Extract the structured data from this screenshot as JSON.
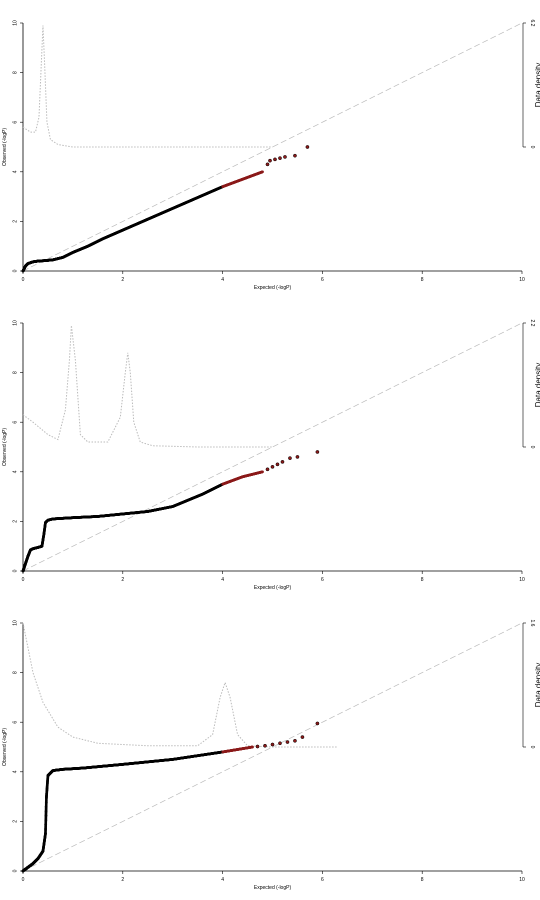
{
  "chart_data": [
    {
      "type": "scatter",
      "xlabel": "Expected (-logP)",
      "ylabel": "Observed (-logP)",
      "y2label": "Data density",
      "xlim": [
        0,
        10
      ],
      "ylim": [
        0,
        10
      ],
      "xticks": [
        "0",
        "2",
        "4",
        "6",
        "8",
        "10"
      ],
      "yticks": [
        "0",
        "2",
        "4",
        "6",
        "8",
        "10"
      ],
      "y2ticks": [
        "0",
        "6.2"
      ],
      "grid": false,
      "legend": "none",
      "reference_line": "y = x",
      "colors": {
        "bulk_points": "#000000",
        "tail_points": "#8b1a1a",
        "reference": "#bbbbbb",
        "density": "#bbbbbb"
      },
      "series": [
        {
          "role": "observed_vs_expected",
          "x": [
            0,
            0.05,
            0.1,
            0.2,
            0.3,
            0.45,
            0.6,
            0.8,
            1.0,
            1.3,
            1.6,
            2.0,
            2.4,
            2.8,
            3.2,
            3.6,
            4.0,
            4.4,
            4.8
          ],
          "y": [
            0,
            0.2,
            0.3,
            0.37,
            0.4,
            0.42,
            0.45,
            0.55,
            0.75,
            1.0,
            1.3,
            1.65,
            2.0,
            2.35,
            2.7,
            3.05,
            3.4,
            3.7,
            4.0
          ]
        },
        {
          "role": "tail_points",
          "x": [
            4.9,
            4.95,
            5.05,
            5.15,
            5.25,
            5.45,
            5.7
          ],
          "y": [
            4.3,
            4.45,
            4.5,
            4.55,
            4.6,
            4.65,
            5.0
          ]
        },
        {
          "role": "density_curve",
          "x": [
            0,
            0.15,
            0.25,
            0.32,
            0.37,
            0.4,
            0.43,
            0.48,
            0.55,
            0.7,
            1.0,
            2.0,
            3.0,
            4.0,
            5.0
          ],
          "y": [
            5.8,
            5.6,
            5.6,
            6.2,
            8.5,
            9.9,
            8.5,
            6.0,
            5.3,
            5.1,
            5.0,
            5.0,
            5.0,
            5.0,
            5.0
          ]
        }
      ]
    },
    {
      "type": "scatter",
      "xlabel": "Expected (-logP)",
      "ylabel": "Observed (-logP)",
      "y2label": "Data density",
      "xlim": [
        0,
        10
      ],
      "ylim": [
        0,
        10
      ],
      "xticks": [
        "0",
        "2",
        "4",
        "6",
        "8",
        "10"
      ],
      "yticks": [
        "0",
        "2",
        "4",
        "6",
        "8",
        "10"
      ],
      "y2ticks": [
        "0",
        "2.2"
      ],
      "grid": false,
      "legend": "none",
      "reference_line": "y = x",
      "colors": {
        "bulk_points": "#000000",
        "tail_points": "#8b1a1a",
        "reference": "#bbbbbb",
        "density": "#bbbbbb"
      },
      "series": [
        {
          "role": "observed_vs_expected",
          "x": [
            0,
            0.05,
            0.1,
            0.15,
            0.2,
            0.3,
            0.38,
            0.42,
            0.45,
            0.5,
            0.6,
            1.0,
            1.5,
            2.0,
            2.5,
            3.0,
            3.3,
            3.6,
            4.0,
            4.4,
            4.8
          ],
          "y": [
            0,
            0.3,
            0.6,
            0.85,
            0.9,
            0.95,
            1.0,
            1.5,
            1.95,
            2.05,
            2.1,
            2.15,
            2.2,
            2.3,
            2.4,
            2.6,
            2.85,
            3.1,
            3.5,
            3.8,
            4.0
          ]
        },
        {
          "role": "tail_points",
          "x": [
            4.9,
            5.0,
            5.1,
            5.2,
            5.35,
            5.5,
            5.9
          ],
          "y": [
            4.1,
            4.2,
            4.3,
            4.4,
            4.55,
            4.6,
            4.8
          ]
        },
        {
          "role": "density_curve",
          "x": [
            0,
            0.2,
            0.5,
            0.7,
            0.85,
            0.93,
            0.97,
            1.05,
            1.15,
            1.3,
            1.7,
            1.95,
            2.05,
            2.1,
            2.15,
            2.22,
            2.35,
            2.6,
            3.5,
            5.0
          ],
          "y": [
            6.3,
            6.0,
            5.5,
            5.3,
            6.5,
            8.5,
            9.9,
            8.5,
            5.5,
            5.2,
            5.2,
            6.2,
            8.0,
            8.8,
            8.0,
            6.0,
            5.2,
            5.05,
            5.0,
            5.0
          ]
        }
      ]
    },
    {
      "type": "scatter",
      "xlabel": "Expected (-logP)",
      "ylabel": "Observed (-logP)",
      "y2label": "Data density",
      "xlim": [
        0,
        10
      ],
      "ylim": [
        0,
        10
      ],
      "xticks": [
        "0",
        "2",
        "4",
        "6",
        "8",
        "10"
      ],
      "yticks": [
        "0",
        "2",
        "4",
        "6",
        "8",
        "10"
      ],
      "y2ticks": [
        "0",
        "1.6"
      ],
      "grid": false,
      "legend": "none",
      "reference_line": "y = x",
      "colors": {
        "bulk_points": "#000000",
        "tail_points": "#8b1a1a",
        "reference": "#bbbbbb",
        "density": "#bbbbbb"
      },
      "series": [
        {
          "role": "observed_vs_expected",
          "x": [
            0,
            0.1,
            0.2,
            0.3,
            0.4,
            0.45,
            0.47,
            0.5,
            0.6,
            0.8,
            1.2,
            2.0,
            3.0,
            4.0,
            4.6
          ],
          "y": [
            0,
            0.15,
            0.3,
            0.5,
            0.8,
            1.5,
            3.0,
            3.85,
            4.05,
            4.1,
            4.15,
            4.3,
            4.5,
            4.8,
            5.0
          ]
        },
        {
          "role": "tail_points",
          "x": [
            4.7,
            4.85,
            5.0,
            5.15,
            5.3,
            5.45,
            5.6,
            5.9
          ],
          "y": [
            5.02,
            5.05,
            5.1,
            5.15,
            5.2,
            5.25,
            5.4,
            5.95
          ]
        },
        {
          "role": "density_curve",
          "x": [
            0,
            0.05,
            0.2,
            0.4,
            0.7,
            1.0,
            1.5,
            2.5,
            3.5,
            3.8,
            3.95,
            4.05,
            4.15,
            4.3,
            4.5,
            5.0,
            6.0,
            6.3
          ],
          "y": [
            10.0,
            9.5,
            8.0,
            6.8,
            5.8,
            5.4,
            5.15,
            5.05,
            5.05,
            5.5,
            7.0,
            7.6,
            7.0,
            5.5,
            5.05,
            5.0,
            5.0,
            5.0
          ]
        }
      ]
    }
  ]
}
